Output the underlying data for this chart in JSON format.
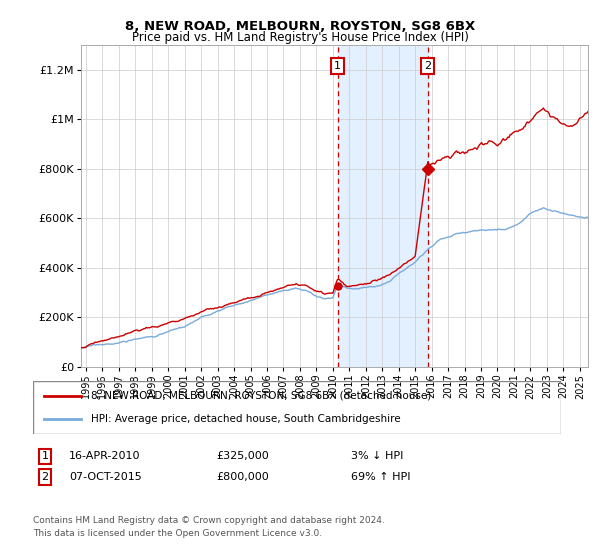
{
  "title": "8, NEW ROAD, MELBOURN, ROYSTON, SG8 6BX",
  "subtitle": "Price paid vs. HM Land Registry's House Price Index (HPI)",
  "legend_line1": "8, NEW ROAD, MELBOURN, ROYSTON, SG8 6BX (detached house)",
  "legend_line2": "HPI: Average price, detached house, South Cambridgeshire",
  "footnote1": "Contains HM Land Registry data © Crown copyright and database right 2024.",
  "footnote2": "This data is licensed under the Open Government Licence v3.0.",
  "transaction1": {
    "label": "1",
    "date": "16-APR-2010",
    "price": "£325,000",
    "hpi": "3% ↓ HPI",
    "x_year": 2010.29,
    "price_val": 325000
  },
  "transaction2": {
    "label": "2",
    "date": "07-OCT-2015",
    "price": "£800,000",
    "hpi": "69% ↑ HPI",
    "x_year": 2015.77,
    "price_val": 800000
  },
  "price_color": "#cc0000",
  "hpi_color": "#7aabdb",
  "vline_color": "#cc0000",
  "shaded_color": "#ddeeff",
  "ylim": [
    0,
    1300000
  ],
  "xlim_start": 1994.7,
  "xlim_end": 2025.5,
  "yticks": [
    0,
    200000,
    400000,
    600000,
    800000,
    1000000,
    1200000
  ],
  "ytick_labels": [
    "£0",
    "£200K",
    "£400K",
    "£600K",
    "£800K",
    "£1M",
    "£1.2M"
  ],
  "xticks": [
    1995,
    1996,
    1997,
    1998,
    1999,
    2000,
    2001,
    2002,
    2003,
    2004,
    2005,
    2006,
    2007,
    2008,
    2009,
    2010,
    2011,
    2012,
    2013,
    2014,
    2015,
    2016,
    2017,
    2018,
    2019,
    2020,
    2021,
    2022,
    2023,
    2024,
    2025
  ]
}
